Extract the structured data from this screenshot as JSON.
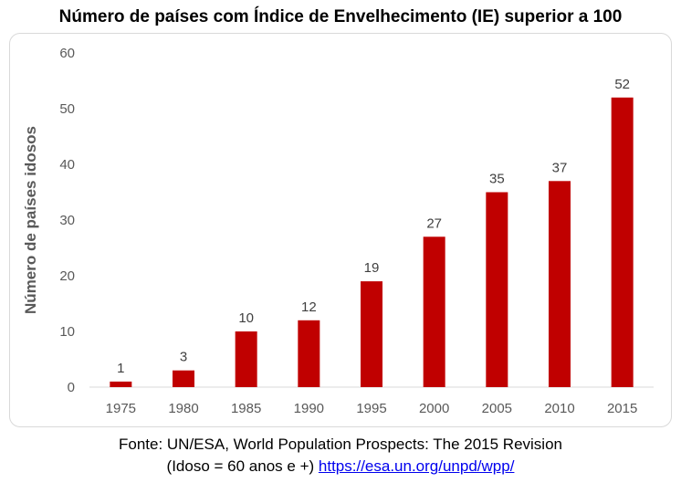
{
  "chart_data": {
    "type": "bar",
    "title": "Número de países com Índice de Envelhecimento (IE) superior a 100",
    "xlabel": "",
    "ylabel": "Número de países idosos",
    "categories": [
      "1975",
      "1980",
      "1985",
      "1990",
      "1995",
      "2000",
      "2005",
      "2010",
      "2015"
    ],
    "values": [
      1,
      3,
      10,
      12,
      19,
      27,
      35,
      37,
      52
    ],
    "ylim": [
      0,
      60
    ],
    "yticks": [
      0,
      10,
      20,
      30,
      40,
      50,
      60
    ],
    "grid": false,
    "legend": "none",
    "bar_color": "#C00000",
    "data_labels": true
  },
  "source": {
    "line1": "Fonte: UN/ESA, World Population Prospects: The 2015 Revision",
    "line2_prefix": "(Idoso = 60 anos e +) ",
    "link_text": "https://esa.un.org/unpd/wpp/"
  }
}
